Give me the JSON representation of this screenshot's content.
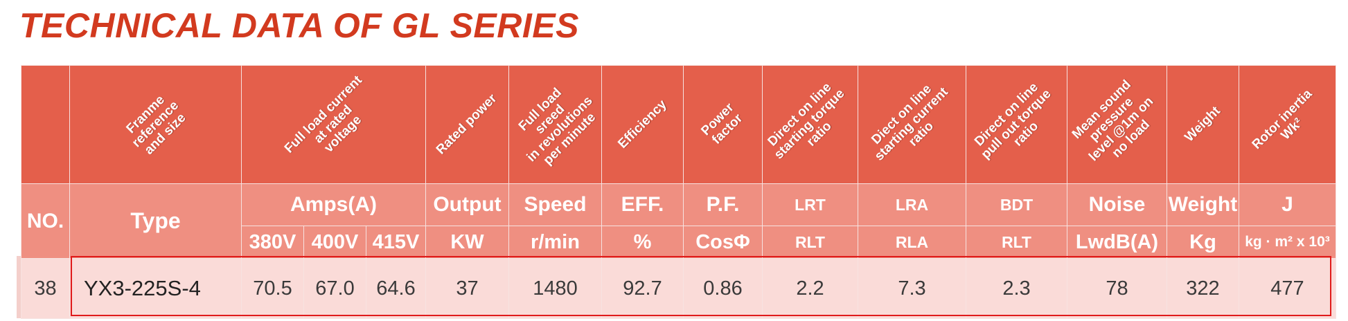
{
  "title": "TECHNICAL DATA OF GL SERIES",
  "header_rotated": {
    "frame": "Franme\nreference\nand size",
    "current": "Full load current\nat rated\nvoltage",
    "power": "Rated power",
    "speed": "Full load sreed\nin revolutions\nper minute",
    "efficiency": "Efficiency",
    "pf": "Power factor",
    "dol_torque": "Direct on line\nstarting torque\nratio",
    "dol_current": "Diect on line\nstarting current\nratio",
    "dol_pullout": "Direct on line\npull out torque\nratio",
    "noise": "Mean sound\npressure\nlevel @1m on\nno load",
    "weight": "Weight",
    "inertia": "Rotor inertia\nWk²"
  },
  "header_mid": {
    "no": "NO.",
    "type": "Type",
    "amps": "Amps(A)",
    "output": "Output",
    "speed": "Speed",
    "eff": "EFF.",
    "pf": "P.F.",
    "lrt": "LRT",
    "lra": "LRA",
    "bdt": "BDT",
    "noise": "Noise",
    "weight": "Weight",
    "j": "J"
  },
  "header_low": {
    "v380": "380V",
    "v400": "400V",
    "v415": "415V",
    "kw": "KW",
    "rmin": "r/min",
    "pct": "%",
    "cos": "CosΦ",
    "rlt1": "RLT",
    "rla": "RLA",
    "rlt2": "RLT",
    "lwd": "LwdB(A)",
    "kg": "Kg",
    "j_unit": "kg · m² x 10³"
  },
  "row": {
    "no": "38",
    "type": "YX3-225S-4",
    "a380": "70.5",
    "a400": "67.0",
    "a415": "64.6",
    "kw": "37",
    "speed": "1480",
    "eff": "92.7",
    "pf": "0.86",
    "lrt": "2.2",
    "lra": "7.3",
    "bdt": "2.3",
    "noise": "78",
    "weight": "322",
    "j": "477"
  },
  "colors": {
    "title": "#d23a1f",
    "header_dark": "#e45f4b",
    "header_light": "#ef8f81",
    "data_row": "#fadbd8",
    "highlight": "#e01b1b"
  }
}
